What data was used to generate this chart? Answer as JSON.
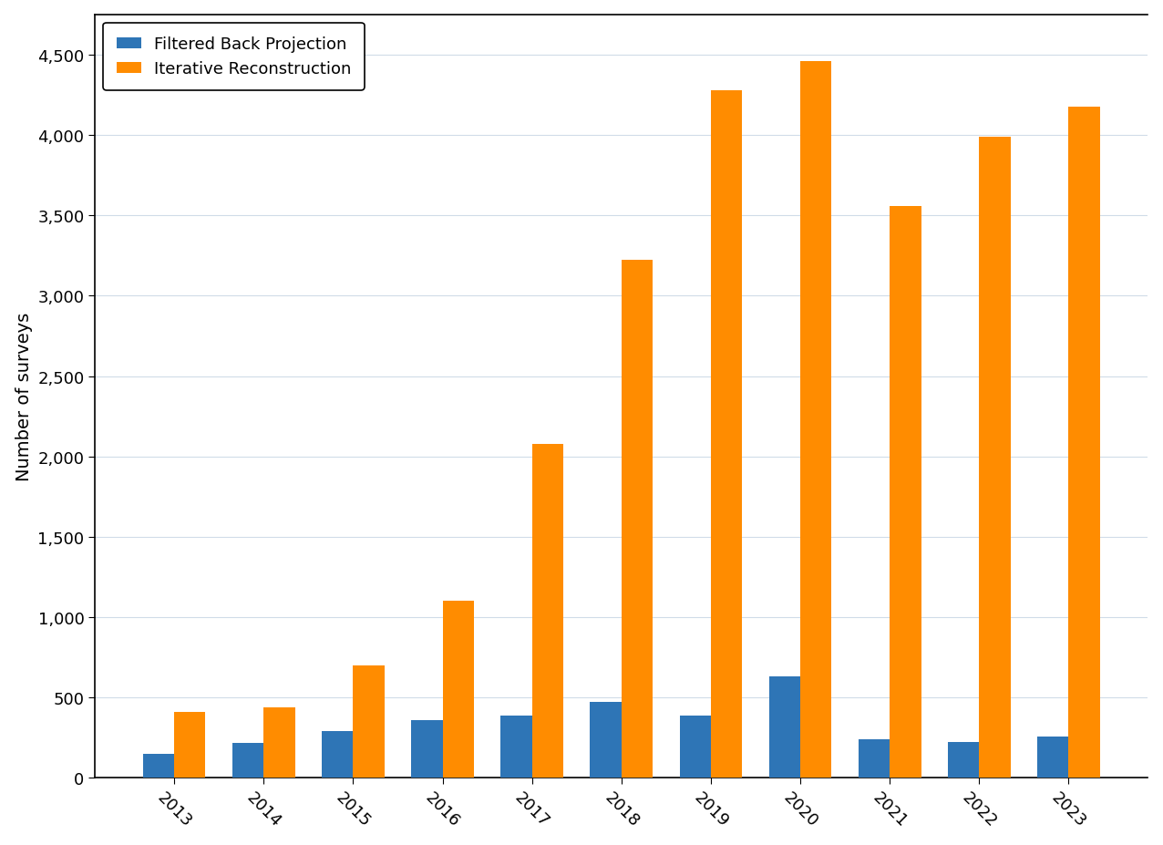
{
  "years": [
    "2013",
    "2014",
    "2015",
    "2016",
    "2017",
    "2018",
    "2019",
    "2020",
    "2021",
    "2022",
    "2023"
  ],
  "fbp_values": [
    150,
    220,
    290,
    360,
    390,
    475,
    390,
    630,
    240,
    225,
    255
  ],
  "ir_values": [
    410,
    440,
    700,
    1100,
    2075,
    3225,
    4275,
    4460,
    3560,
    3990,
    4175
  ],
  "fbp_color": "#2E75B6",
  "ir_color": "#FF8C00",
  "fbp_label": "Filtered Back Projection",
  "ir_label": "Iterative Reconstruction",
  "ylabel": "Number of surveys",
  "ylim": [
    0,
    4750
  ],
  "yticks": [
    0,
    500,
    1000,
    1500,
    2000,
    2500,
    3000,
    3500,
    4000,
    4500
  ],
  "bar_width": 0.35,
  "legend_loc": "upper left",
  "grid_color": "#d0dce8",
  "bg_color": "#ffffff",
  "label_fontsize": 14,
  "tick_fontsize": 13,
  "legend_fontsize": 13,
  "spine_color": "#000000",
  "tick_color": "#000000"
}
